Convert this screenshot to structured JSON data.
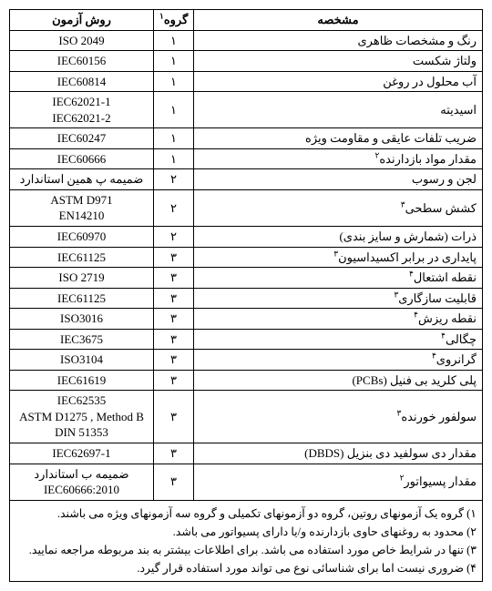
{
  "headers": {
    "method": "روش آزمون",
    "group": "گروه",
    "group_sup": "۱",
    "spec": "مشخصه"
  },
  "rows": [
    {
      "method": "ISO 2049",
      "group": "۱",
      "spec": "رنگ و مشخصات ظاهری",
      "sup": ""
    },
    {
      "method": "IEC60156",
      "group": "۱",
      "spec": "ولتاژ شکست",
      "sup": ""
    },
    {
      "method": "IEC60814",
      "group": "۱",
      "spec": "آب محلول در روغن",
      "sup": ""
    },
    {
      "method": "IEC62021-1\nIEC62021-2",
      "group": "۱",
      "spec": "اسیدیته",
      "sup": ""
    },
    {
      "method": "IEC60247",
      "group": "۱",
      "spec": "ضریب تلفات عایقی و مقاومت ویژه",
      "sup": ""
    },
    {
      "method": "IEC60666",
      "group": "۱",
      "spec": "مقدار مواد بازدارنده",
      "sup": "۲"
    },
    {
      "method": "ضمیمه پ همین استاندارد",
      "group": "۲",
      "spec": "لجن و رسوب",
      "sup": ""
    },
    {
      "method": "ASTM D971\nEN14210",
      "group": "۲",
      "spec": "کشش سطحی",
      "sup": "۳"
    },
    {
      "method": "IEC60970",
      "group": "۲",
      "spec": "ذرات (شمارش و سایز بندی)",
      "sup": ""
    },
    {
      "method": "IEC61125",
      "group": "۳",
      "spec": "پایداری در برابر اکسیداسیون",
      "sup": "۳"
    },
    {
      "method": "ISO 2719",
      "group": "۳",
      "spec": "نقطه اشتعال",
      "sup": "۴"
    },
    {
      "method": "IEC61125",
      "group": "۳",
      "spec": "قابلیت سازگاری",
      "sup": "۳"
    },
    {
      "method": "ISO3016",
      "group": "۳",
      "spec": "نقطه ریزش",
      "sup": "۴"
    },
    {
      "method": "IEC3675",
      "group": "۳",
      "spec": "چگالی",
      "sup": "۴"
    },
    {
      "method": "ISO3104",
      "group": "۳",
      "spec": "گرانروی",
      "sup": "۴"
    },
    {
      "method": "IEC61619",
      "group": "۳",
      "spec": "پلی کلرید بی فنیل (PCBs)",
      "sup": ""
    },
    {
      "method": "IEC62535\nASTM D1275 , Method B\nDIN 51353",
      "group": "۳",
      "spec": "سولفور خورنده",
      "sup": "۳"
    },
    {
      "method": "IEC62697-1",
      "group": "۳",
      "spec": "مقدار دی سولفید دی بنزیل (DBDS)",
      "sup": ""
    },
    {
      "method": "ضمیمه ب استاندارد\nIEC60666:2010",
      "group": "۳",
      "spec": "مقدار پسیواتور",
      "sup": "۲"
    }
  ],
  "footnotes": [
    "۱) گروه یک آزمونهای روتین، گروه دو آزمونهای تکمیلی و گروه سه آزمونهای ویژه می باشند.",
    "۲) محدود به روغنهای حاوی بازدارنده و/یا دارای پسیواتور می باشد.",
    "۳) تنها در شرایط خاص مورد استفاده می باشد. برای اطلاعات بیشتر به بند مربوطه مراجعه نمایید.",
    "۴) ضروری نیست اما برای شناسائی نوع می تواند مورد استفاده قرار گیرد."
  ]
}
